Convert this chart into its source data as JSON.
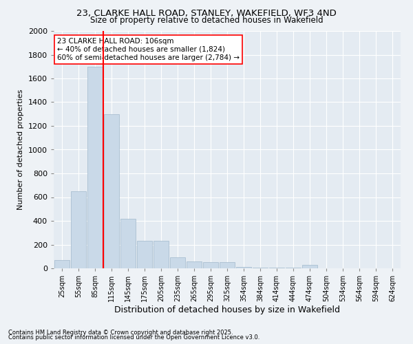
{
  "title_line1": "23, CLARKE HALL ROAD, STANLEY, WAKEFIELD, WF3 4ND",
  "title_line2": "Size of property relative to detached houses in Wakefield",
  "xlabel": "Distribution of detached houses by size in Wakefield",
  "ylabel": "Number of detached properties",
  "categories": [
    "25sqm",
    "55sqm",
    "85sqm",
    "115sqm",
    "145sqm",
    "175sqm",
    "205sqm",
    "235sqm",
    "265sqm",
    "295sqm",
    "325sqm",
    "354sqm",
    "384sqm",
    "414sqm",
    "444sqm",
    "474sqm",
    "504sqm",
    "534sqm",
    "564sqm",
    "594sqm",
    "624sqm"
  ],
  "values": [
    70,
    650,
    1700,
    1300,
    420,
    230,
    230,
    90,
    60,
    50,
    50,
    10,
    5,
    5,
    5,
    30,
    0,
    0,
    0,
    0,
    0
  ],
  "bar_color": "#c9d9e8",
  "bar_edge_color": "#a0b8cc",
  "vline_x": 2,
  "vline_color": "red",
  "annotation_text": "23 CLARKE HALL ROAD: 106sqm\n← 40% of detached houses are smaller (1,824)\n60% of semi-detached houses are larger (2,784) →",
  "annotation_box_color": "white",
  "annotation_box_edge_color": "red",
  "ylim": [
    0,
    2000
  ],
  "yticks": [
    0,
    200,
    400,
    600,
    800,
    1000,
    1200,
    1400,
    1600,
    1800,
    2000
  ],
  "footnote1": "Contains HM Land Registry data © Crown copyright and database right 2025.",
  "footnote2": "Contains public sector information licensed under the Open Government Licence v3.0.",
  "bg_color": "#eef2f6",
  "plot_bg_color": "#e4ebf2"
}
